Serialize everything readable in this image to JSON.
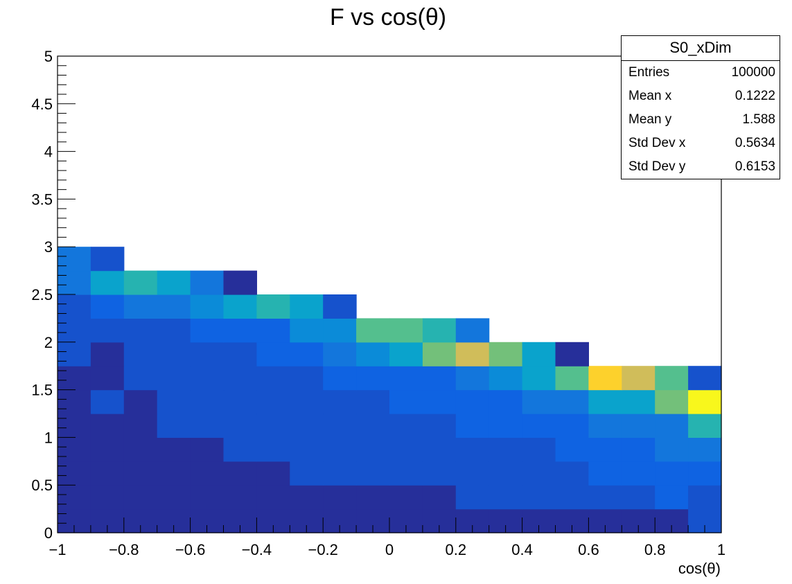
{
  "chart_data": {
    "type": "heatmap",
    "title": "F vs cos(θ)",
    "xlabel": "cos(θ)",
    "ylabel": "",
    "xlim": [
      -1,
      1
    ],
    "ylim": [
      0,
      5
    ],
    "x_bin_width": 0.1,
    "y_bin_width": 0.25,
    "x_tick_labels": [
      "−1",
      "−0.8",
      "−0.6",
      "−0.4",
      "−0.2",
      "0",
      "0.2",
      "0.4",
      "0.6",
      "0.8",
      "1"
    ],
    "y_tick_labels": [
      "0",
      "0.5",
      "1",
      "1.5",
      "2",
      "2.5",
      "3",
      "3.5",
      "4",
      "4.5",
      "5"
    ],
    "color_levels": [
      "#262f9a",
      "#1652cc",
      "#0f63e2",
      "#1376dc",
      "#0b8bd8",
      "#0aa3cc",
      "#26b3b0",
      "#54bf8e",
      "#73c07a",
      "#d0bd5a",
      "#fdd12c",
      "#f8f71c"
    ],
    "bins_level": [
      [
        0,
        0,
        0,
        0,
        0,
        0,
        0,
        0,
        0,
        0,
        0,
        0,
        0,
        0,
        0,
        0,
        0,
        0,
        0,
        1
      ],
      [
        0,
        0,
        0,
        0,
        0,
        0,
        0,
        0,
        0,
        0,
        0,
        0,
        1,
        1,
        1,
        1,
        1,
        1,
        2,
        1
      ],
      [
        0,
        0,
        0,
        0,
        0,
        0,
        0,
        1,
        1,
        1,
        1,
        1,
        1,
        1,
        1,
        1,
        2,
        2,
        2,
        2
      ],
      [
        0,
        0,
        0,
        0,
        0,
        1,
        1,
        1,
        1,
        1,
        1,
        1,
        1,
        1,
        1,
        2,
        2,
        2,
        3,
        3
      ],
      [
        0,
        0,
        0,
        1,
        1,
        1,
        1,
        1,
        1,
        1,
        1,
        1,
        2,
        2,
        2,
        2,
        3,
        3,
        3,
        6
      ],
      [
        0,
        1,
        0,
        1,
        1,
        1,
        1,
        1,
        1,
        1,
        2,
        2,
        2,
        2,
        3,
        3,
        5,
        5,
        8,
        11
      ],
      [
        0,
        0,
        1,
        1,
        1,
        1,
        1,
        1,
        2,
        2,
        2,
        2,
        3,
        4,
        5,
        7,
        10,
        9,
        7,
        1
      ],
      [
        1,
        0,
        1,
        1,
        1,
        1,
        2,
        2,
        3,
        4,
        5,
        8,
        9,
        8,
        5,
        0,
        null,
        null,
        null,
        null
      ],
      [
        1,
        1,
        1,
        1,
        2,
        2,
        2,
        4,
        4,
        7,
        7,
        6,
        3,
        null,
        null,
        null,
        null,
        null,
        null,
        null
      ],
      [
        1,
        2,
        3,
        3,
        4,
        5,
        6,
        5,
        1,
        null,
        null,
        null,
        null,
        null,
        null,
        null,
        null,
        null,
        null,
        null
      ],
      [
        3,
        5,
        6,
        5,
        3,
        0,
        null,
        null,
        null,
        null,
        null,
        null,
        null,
        null,
        null,
        null,
        null,
        null,
        null,
        null
      ],
      [
        3,
        1,
        null,
        null,
        null,
        null,
        null,
        null,
        null,
        null,
        null,
        null,
        null,
        null,
        null,
        null,
        null,
        null,
        null,
        null
      ]
    ]
  },
  "stats": {
    "title": "S0_xDim",
    "rows": [
      {
        "label": "Entries",
        "value": "100000"
      },
      {
        "label": "Mean x",
        "value": "0.1222"
      },
      {
        "label": "Mean y",
        "value": "1.588"
      },
      {
        "label": "Std Dev x",
        "value": "0.5634"
      },
      {
        "label": "Std Dev y",
        "value": "0.6153"
      }
    ]
  }
}
